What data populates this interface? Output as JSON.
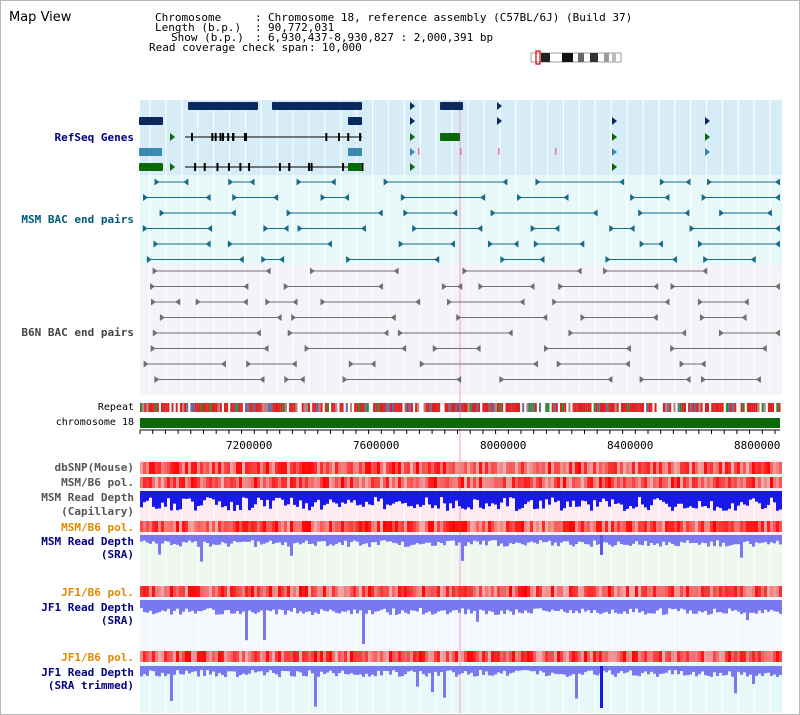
{
  "view": {
    "title": "Map View"
  },
  "header": {
    "chromosome_label": "Chromosome",
    "chromosome_value": "Chromosome 18, reference assembly (C57BL/6J) (Build 37)",
    "length_label": "Length (b.p.)",
    "length_value": "90,772,031",
    "show_label": "Show (b.p.)",
    "show_value": "6,930,437-8,930,827 : 2,000,391 bp",
    "coverage_label": "Read coverage check span",
    "coverage_value": "10,000"
  },
  "tracks": {
    "refseq": "RefSeq Genes",
    "msm_bac": "MSM BAC end pairs",
    "b6n_bac": "B6N BAC end pairs",
    "repeat": "Repeat",
    "chromosome": "chromosome 18",
    "dbsnp": "dbSNP(Mouse)",
    "msm_b6_pol_1": "MSM/B6 pol.",
    "msm_read_depth_cap_1": "MSM Read Depth",
    "msm_read_depth_cap_2": "(Capillary)",
    "msm_b6_pol_2": "MSM/B6 pol.",
    "msm_read_depth_sra_1": "MSM Read Depth",
    "msm_read_depth_sra_2": "(SRA)",
    "jf1_b6_pol_1": "JF1/B6 pol.",
    "jf1_read_depth_sra_1": "JF1 Read Depth",
    "jf1_read_depth_sra_2": "(SRA)",
    "jf1_b6_pol_2": "JF1/B6 pol.",
    "jf1_read_depth_trim_1": "JF1 Read Depth",
    "jf1_read_depth_trim_2": "(SRA trimmed)"
  },
  "axis": {
    "ticks": [
      "7200000",
      "7600000",
      "8000000",
      "8400000",
      "8800000"
    ]
  },
  "colors": {
    "gene_dark": "#0a2a5e",
    "gene_mid": "#3a8ab0",
    "gene_green": "#0a6a0a",
    "msm_bac": "#1a6a8a",
    "b6n_bac": "#707070",
    "repeat_red": "#e02020",
    "chromosome": "#0a6a0a",
    "depth_blue": "#2a2af0",
    "depth_light": "#7878f0",
    "label_navy": "#000080",
    "label_teal": "#005a7a",
    "label_orange": "#e08a00",
    "label_gray": "#444444"
  }
}
